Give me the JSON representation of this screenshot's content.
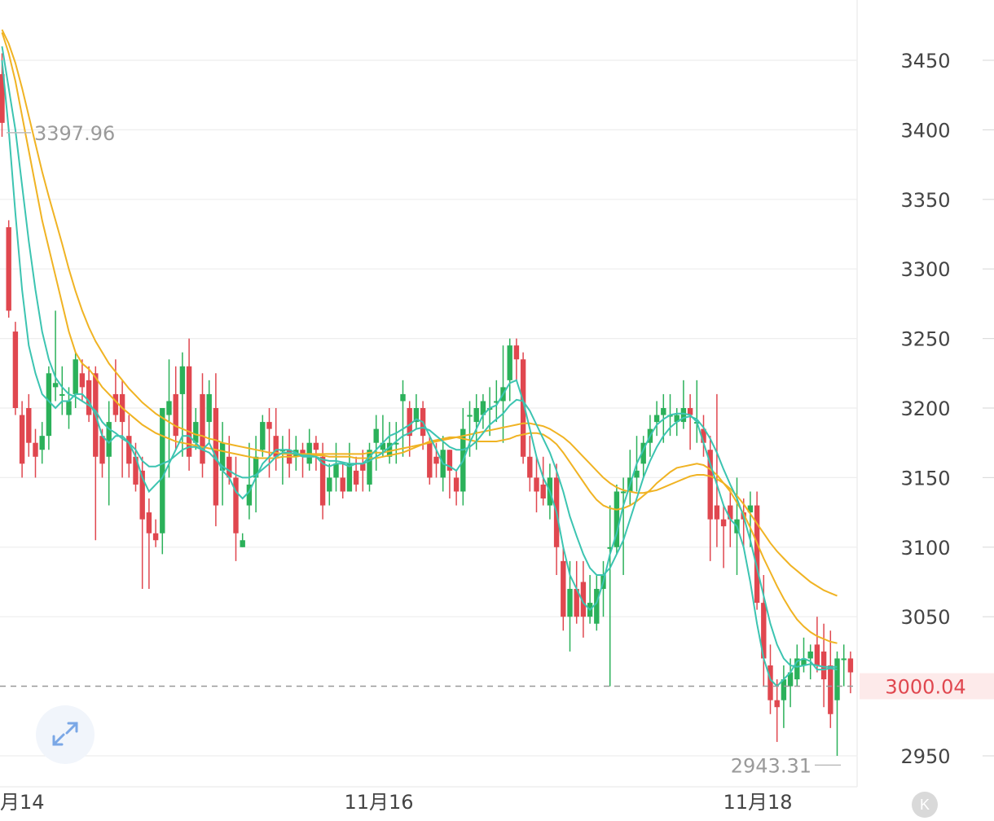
{
  "chart_data": {
    "type": "candlestick",
    "y_ticks": [
      "3450",
      "3400",
      "3350",
      "3300",
      "3250",
      "3200",
      "3150",
      "3100",
      "3050",
      "2950"
    ],
    "y_tick_values": [
      3450,
      3400,
      3350,
      3300,
      3250,
      3200,
      3150,
      3100,
      3050,
      2950
    ],
    "ylim": [
      2928,
      3490
    ],
    "x_ticks": [
      "月14",
      "11月16",
      "11月18"
    ],
    "x_tick_candles": [
      0,
      56,
      111
    ],
    "current_price": "3000.04",
    "current_price_value": 3000.04,
    "high_marker": "3397.96",
    "high_marker_value": 3397.96,
    "low_marker": "2943.31",
    "low_marker_value": 2943.31,
    "colors": {
      "up": "#2bb15a",
      "down": "#e0474f",
      "ma_fast": "#3cc4b1",
      "ma_slow": "#f0b323",
      "grid": "#eeeeee",
      "price_line": "#999999"
    },
    "grid": true,
    "candles": [
      [
        3440,
        3405,
        3455,
        3395
      ],
      [
        3330,
        3270,
        3335,
        3265
      ],
      [
        3255,
        3200,
        3262,
        3195
      ],
      [
        3195,
        3160,
        3205,
        3150
      ],
      [
        3200,
        3175,
        3210,
        3165
      ],
      [
        3175,
        3165,
        3185,
        3150
      ],
      [
        3170,
        3180,
        3190,
        3160
      ],
      [
        3180,
        3225,
        3230,
        3170
      ],
      [
        3215,
        3218,
        3270,
        3205
      ],
      [
        3210,
        3210,
        3230,
        3195
      ],
      [
        3195,
        3205,
        3215,
        3185
      ],
      [
        3210,
        3235,
        3240,
        3200
      ],
      [
        3225,
        3215,
        3235,
        3205
      ],
      [
        3220,
        3195,
        3230,
        3190
      ],
      [
        3225,
        3165,
        3230,
        3105
      ],
      [
        3180,
        3160,
        3185,
        3150
      ],
      [
        3165,
        3190,
        3205,
        3130
      ],
      [
        3210,
        3195,
        3235,
        3190
      ],
      [
        3210,
        3190,
        3220,
        3150
      ],
      [
        3180,
        3160,
        3195,
        3150
      ],
      [
        3165,
        3145,
        3175,
        3140
      ],
      [
        3155,
        3120,
        3165,
        3070
      ],
      [
        3125,
        3110,
        3135,
        3070
      ],
      [
        3110,
        3105,
        3120,
        3100
      ],
      [
        3110,
        3200,
        3200,
        3095
      ],
      [
        3195,
        3205,
        3235,
        3150
      ],
      [
        3210,
        3180,
        3230,
        3170
      ],
      [
        3210,
        3230,
        3240,
        3165
      ],
      [
        3230,
        3165,
        3250,
        3155
      ],
      [
        3175,
        3190,
        3200,
        3170
      ],
      [
        3210,
        3160,
        3225,
        3150
      ],
      [
        3190,
        3210,
        3220,
        3175
      ],
      [
        3200,
        3130,
        3225,
        3115
      ],
      [
        3155,
        3175,
        3190,
        3130
      ],
      [
        3165,
        3150,
        3180,
        3145
      ],
      [
        3150,
        3110,
        3165,
        3090
      ],
      [
        3100,
        3105,
        3110,
        3100
      ],
      [
        3130,
        3145,
        3175,
        3120
      ],
      [
        3150,
        3165,
        3180,
        3125
      ],
      [
        3170,
        3190,
        3195,
        3165
      ],
      [
        3190,
        3185,
        3200,
        3150
      ],
      [
        3180,
        3165,
        3200,
        3155
      ],
      [
        3170,
        3170,
        3180,
        3145
      ],
      [
        3170,
        3160,
        3185,
        3150
      ],
      [
        3165,
        3170,
        3180,
        3155
      ],
      [
        3170,
        3165,
        3175,
        3150
      ],
      [
        3160,
        3175,
        3185,
        3155
      ],
      [
        3175,
        3170,
        3180,
        3155
      ],
      [
        3165,
        3130,
        3175,
        3120
      ],
      [
        3140,
        3150,
        3160,
        3130
      ],
      [
        3150,
        3160,
        3175,
        3140
      ],
      [
        3150,
        3140,
        3160,
        3135
      ],
      [
        3140,
        3160,
        3175,
        3140
      ],
      [
        3155,
        3145,
        3165,
        3140
      ],
      [
        3160,
        3155,
        3170,
        3140
      ],
      [
        3145,
        3170,
        3175,
        3140
      ],
      [
        3175,
        3185,
        3195,
        3155
      ],
      [
        3170,
        3175,
        3195,
        3165
      ],
      [
        3165,
        3175,
        3190,
        3160
      ],
      [
        3175,
        3175,
        3190,
        3160
      ],
      [
        3205,
        3210,
        3220,
        3165
      ],
      [
        3200,
        3180,
        3205,
        3165
      ],
      [
        3190,
        3200,
        3210,
        3185
      ],
      [
        3200,
        3180,
        3205,
        3170
      ],
      [
        3175,
        3150,
        3180,
        3145
      ],
      [
        3165,
        3160,
        3175,
        3150
      ],
      [
        3150,
        3170,
        3180,
        3140
      ],
      [
        3170,
        3155,
        3170,
        3135
      ],
      [
        3150,
        3140,
        3155,
        3130
      ],
      [
        3140,
        3185,
        3200,
        3130
      ],
      [
        3195,
        3195,
        3205,
        3165
      ],
      [
        3190,
        3200,
        3210,
        3170
      ],
      [
        3195,
        3205,
        3210,
        3185
      ],
      [
        3200,
        3200,
        3215,
        3180
      ],
      [
        3205,
        3205,
        3220,
        3190
      ],
      [
        3205,
        3215,
        3245,
        3175
      ],
      [
        3220,
        3245,
        3250,
        3205
      ],
      [
        3245,
        3235,
        3250,
        3220
      ],
      [
        3235,
        3165,
        3240,
        3160
      ],
      [
        3165,
        3150,
        3180,
        3140
      ],
      [
        3150,
        3140,
        3165,
        3125
      ],
      [
        3145,
        3135,
        3165,
        3130
      ],
      [
        3130,
        3150,
        3160,
        3120
      ],
      [
        3150,
        3100,
        3160,
        3080
      ],
      [
        3090,
        3050,
        3100,
        3040
      ],
      [
        3050,
        3070,
        3090,
        3025
      ],
      [
        3070,
        3050,
        3090,
        3045
      ],
      [
        3075,
        3050,
        3090,
        3035
      ],
      [
        3050,
        3060,
        3080,
        3045
      ],
      [
        3045,
        3070,
        3080,
        3040
      ],
      [
        3070,
        3080,
        3090,
        3050
      ],
      [
        3100,
        3100,
        3130,
        3000
      ],
      [
        3100,
        3140,
        3145,
        3095
      ],
      [
        3140,
        3140,
        3150,
        3080
      ],
      [
        3140,
        3150,
        3170,
        3130
      ],
      [
        3150,
        3155,
        3180,
        3140
      ],
      [
        3160,
        3175,
        3180,
        3150
      ],
      [
        3175,
        3185,
        3195,
        3165
      ],
      [
        3190,
        3195,
        3205,
        3180
      ],
      [
        3195,
        3200,
        3210,
        3175
      ],
      [
        3195,
        3195,
        3210,
        3180
      ],
      [
        3190,
        3195,
        3200,
        3180
      ],
      [
        3190,
        3200,
        3220,
        3185
      ],
      [
        3200,
        3195,
        3210,
        3170
      ],
      [
        3190,
        3190,
        3220,
        3175
      ],
      [
        3185,
        3175,
        3195,
        3165
      ],
      [
        3170,
        3120,
        3180,
        3090
      ],
      [
        3130,
        3120,
        3210,
        3100
      ],
      [
        3120,
        3115,
        3130,
        3085
      ],
      [
        3130,
        3120,
        3140,
        3100
      ],
      [
        3110,
        3120,
        3150,
        3080
      ],
      [
        3125,
        3120,
        3135,
        3100
      ],
      [
        3125,
        3130,
        3140,
        3100
      ],
      [
        3130,
        3060,
        3140,
        3055
      ],
      [
        3060,
        3020,
        3080,
        3000
      ],
      [
        3015,
        2990,
        3030,
        2980
      ],
      [
        2990,
        2985,
        3005,
        2960
      ],
      [
        2990,
        3005,
        3015,
        2970
      ],
      [
        3000,
        3010,
        3020,
        2985
      ],
      [
        3005,
        3020,
        3030,
        3000
      ],
      [
        3015,
        3020,
        3035,
        3010
      ],
      [
        3020,
        3025,
        3030,
        3005
      ],
      [
        3030,
        3015,
        3050,
        3010
      ],
      [
        3025,
        3005,
        3045,
        2985
      ],
      [
        3015,
        2980,
        3040,
        2970
      ],
      [
        2990,
        3020,
        3025,
        2950
      ],
      [
        3020,
        3020,
        3030,
        3000
      ],
      [
        3020,
        3010,
        3025,
        2995
      ]
    ],
    "ma5": [
      3450,
      3400,
      3340,
      3285,
      3245,
      3225,
      3210,
      3205,
      3200,
      3205,
      3205,
      3210,
      3210,
      3205,
      3195,
      3180,
      3175,
      3180,
      3180,
      3175,
      3165,
      3150,
      3140,
      3145,
      3150,
      3160,
      3170,
      3180,
      3180,
      3175,
      3170,
      3175,
      3165,
      3155,
      3150,
      3140,
      3135,
      3140,
      3150,
      3160,
      3165,
      3170,
      3170,
      3170,
      3168,
      3165,
      3165,
      3165,
      3160,
      3158,
      3160,
      3160,
      3158,
      3160,
      3160,
      3165,
      3170,
      3175,
      3180,
      3182,
      3185,
      3188,
      3192,
      3190,
      3180,
      3170,
      3160,
      3158,
      3155,
      3162,
      3175,
      3185,
      3195,
      3200,
      3202,
      3210,
      3218,
      3220,
      3205,
      3185,
      3165,
      3150,
      3140,
      3125,
      3100,
      3080,
      3070,
      3060,
      3055,
      3060,
      3075,
      3095,
      3110,
      3130,
      3145,
      3160,
      3170,
      3180,
      3188,
      3192,
      3195,
      3196,
      3196,
      3195,
      3190,
      3175,
      3160,
      3145,
      3130,
      3120,
      3115,
      3100,
      3075,
      3045,
      3020,
      3005,
      3000,
      3005,
      3010,
      3018,
      3020,
      3018,
      3012,
      3012,
      3013,
      3012
    ],
    "ma10": [
      3460,
      3430,
      3400,
      3360,
      3320,
      3285,
      3255,
      3235,
      3222,
      3215,
      3210,
      3208,
      3205,
      3202,
      3198,
      3190,
      3185,
      3182,
      3178,
      3175,
      3170,
      3162,
      3158,
      3158,
      3160,
      3162,
      3166,
      3170,
      3172,
      3172,
      3170,
      3168,
      3163,
      3158,
      3155,
      3152,
      3150,
      3150,
      3152,
      3156,
      3160,
      3165,
      3168,
      3168,
      3167,
      3166,
      3166,
      3165,
      3163,
      3162,
      3162,
      3161,
      3160,
      3160,
      3160,
      3162,
      3165,
      3168,
      3172,
      3176,
      3180,
      3182,
      3185,
      3186,
      3184,
      3180,
      3176,
      3172,
      3170,
      3170,
      3172,
      3176,
      3182,
      3188,
      3192,
      3196,
      3202,
      3206,
      3205,
      3198,
      3188,
      3178,
      3168,
      3155,
      3140,
      3122,
      3108,
      3095,
      3085,
      3080,
      3080,
      3085,
      3095,
      3105,
      3120,
      3135,
      3150,
      3162,
      3172,
      3180,
      3186,
      3190,
      3193,
      3194,
      3192,
      3186,
      3178,
      3168,
      3156,
      3145,
      3135,
      3122,
      3105,
      3085,
      3065,
      3045,
      3030,
      3020,
      3015,
      3014,
      3015,
      3016,
      3015,
      3014,
      3014,
      3014
    ],
    "ma20": [
      3470,
      3455,
      3435,
      3410,
      3385,
      3360,
      3335,
      3315,
      3295,
      3275,
      3255,
      3240,
      3232,
      3228,
      3222,
      3215,
      3210,
      3205,
      3200,
      3196,
      3192,
      3188,
      3185,
      3182,
      3180,
      3178,
      3176,
      3175,
      3174,
      3173,
      3172,
      3171,
      3170,
      3169,
      3168,
      3167,
      3166,
      3165,
      3164,
      3164,
      3164,
      3164,
      3165,
      3165,
      3165,
      3166,
      3166,
      3166,
      3166,
      3165,
      3165,
      3165,
      3165,
      3164,
      3164,
      3164,
      3164,
      3165,
      3166,
      3167,
      3168,
      3170,
      3172,
      3174,
      3176,
      3177,
      3178,
      3179,
      3179,
      3178,
      3177,
      3176,
      3176,
      3176,
      3176,
      3177,
      3178,
      3180,
      3181,
      3182,
      3182,
      3181,
      3178,
      3174,
      3168,
      3161,
      3154,
      3147,
      3140,
      3134,
      3130,
      3128,
      3127,
      3128,
      3130,
      3133,
      3137,
      3141,
      3146,
      3150,
      3154,
      3157,
      3158,
      3159,
      3160,
      3159,
      3156,
      3152,
      3146,
      3140,
      3132,
      3124,
      3114,
      3103,
      3092,
      3082,
      3072,
      3063,
      3055,
      3048,
      3043,
      3039,
      3036,
      3034,
      3032,
      3031
    ],
    "ma30": [
      3472,
      3462,
      3448,
      3430,
      3410,
      3390,
      3370,
      3352,
      3335,
      3318,
      3300,
      3284,
      3270,
      3258,
      3248,
      3240,
      3232,
      3226,
      3220,
      3214,
      3209,
      3204,
      3200,
      3196,
      3193,
      3190,
      3187,
      3185,
      3183,
      3181,
      3180,
      3178,
      3177,
      3175,
      3174,
      3173,
      3172,
      3171,
      3170,
      3169,
      3168,
      3168,
      3167,
      3167,
      3167,
      3167,
      3167,
      3167,
      3167,
      3167,
      3167,
      3167,
      3167,
      3167,
      3167,
      3168,
      3168,
      3168,
      3169,
      3170,
      3171,
      3172,
      3173,
      3174,
      3175,
      3176,
      3177,
      3178,
      3179,
      3180,
      3181,
      3182,
      3183,
      3184,
      3185,
      3186,
      3187,
      3188,
      3189,
      3189,
      3188,
      3187,
      3185,
      3182,
      3179,
      3175,
      3170,
      3165,
      3160,
      3155,
      3150,
      3146,
      3143,
      3141,
      3140,
      3139,
      3139,
      3140,
      3141,
      3143,
      3145,
      3147,
      3149,
      3151,
      3152,
      3152,
      3151,
      3149,
      3146,
      3142,
      3137,
      3131,
      3124,
      3117,
      3110,
      3103,
      3097,
      3092,
      3087,
      3083,
      3079,
      3075,
      3072,
      3069,
      3067,
      3065
    ]
  },
  "controls": {
    "expand_icon": "expand-arrows-icon",
    "k_button_label": "K"
  }
}
